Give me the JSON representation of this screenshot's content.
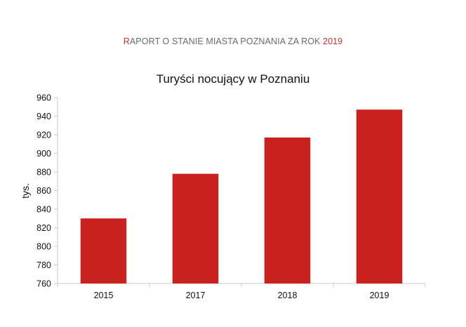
{
  "header": {
    "first_letter": "R",
    "text": "APORT O STANIE MIASTA POZNANIA ZA ROK ",
    "year": "2019",
    "accent_color": "#d0342c",
    "text_color": "#6b6b6b"
  },
  "chart_data": {
    "type": "bar",
    "title": "Turyści nocujący w Poznaniu",
    "xlabel": "",
    "ylabel": "tys.",
    "categories": [
      "2015",
      "2017",
      "2018",
      "2019"
    ],
    "values": [
      830,
      878,
      917,
      947
    ],
    "ylim": [
      760,
      960
    ],
    "yticks": [
      760,
      780,
      800,
      820,
      840,
      860,
      880,
      900,
      920,
      940,
      960
    ],
    "bar_color": "#c9211e",
    "grid": false,
    "legend": "none"
  }
}
